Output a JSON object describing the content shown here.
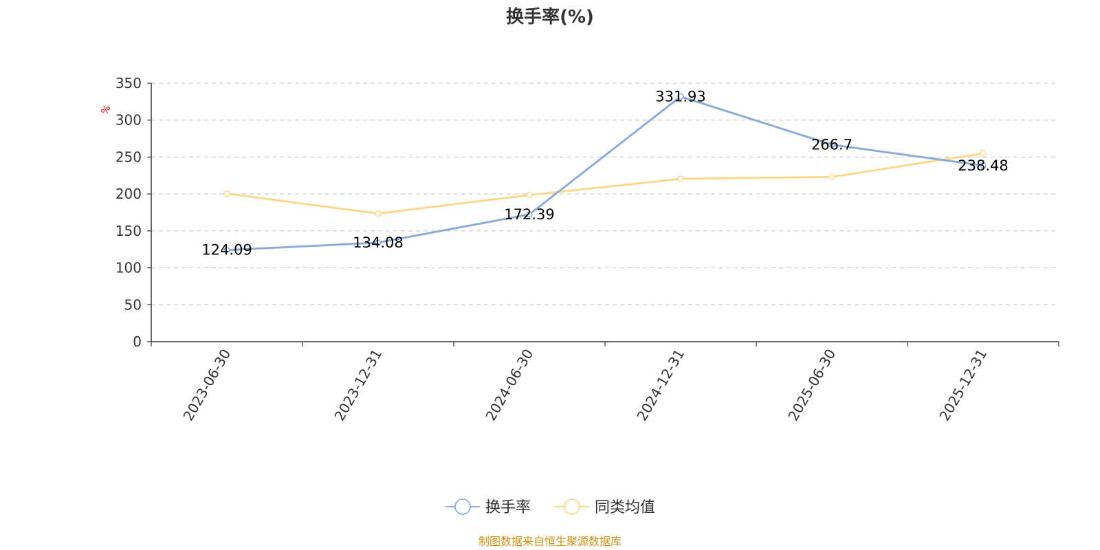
{
  "chart_data": {
    "type": "line",
    "title": "换手率(%)",
    "unit_label": "%",
    "categories": [
      "2023-06-30",
      "2023-12-31",
      "2024-06-30",
      "2024-12-31",
      "2025-06-30",
      "2025-12-31"
    ],
    "series": [
      {
        "name": "换手率",
        "color": "#8eabd6",
        "values": [
          124.09,
          134.08,
          172.39,
          331.93,
          266.7,
          238.48
        ],
        "labels": [
          "124.09",
          "134.08",
          "172.39",
          "331.93",
          "266.7",
          "238.48"
        ]
      },
      {
        "name": "同类均值",
        "color": "#fbd88e",
        "values": [
          200.5,
          173.5,
          198.5,
          220.5,
          223.0,
          255.0
        ]
      }
    ],
    "ylim": [
      0,
      350
    ],
    "yticks": [
      "0",
      "50",
      "100",
      "150",
      "200",
      "250",
      "300",
      "350"
    ],
    "grid": true,
    "legend_position": "bottom-center"
  },
  "source_note": "制图数据来自恒生聚源数据库"
}
